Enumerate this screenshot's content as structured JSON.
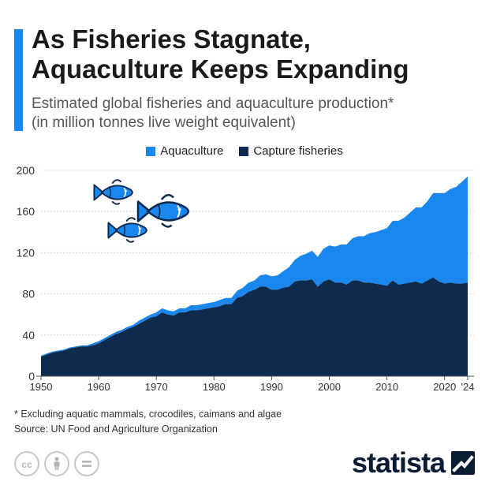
{
  "header": {
    "title_lines": [
      "As Fisheries Stagnate,",
      "Aquaculture Keeps Expanding"
    ],
    "subtitle_lines": [
      "Estimated global fisheries and aquaculture production*",
      "(in million tonnes live weight equivalent)"
    ]
  },
  "colors": {
    "aquaculture": "#1a87ef",
    "capture": "#0e2a4d",
    "accent": "#1a87ef",
    "brand": "#0a1c34"
  },
  "legend": {
    "items": [
      {
        "label": "Aquaculture",
        "color": "#1a87ef"
      },
      {
        "label": "Capture fisheries",
        "color": "#0e2a4d"
      }
    ]
  },
  "chart_data": {
    "type": "area",
    "stacked": true,
    "x": [
      1950,
      1951,
      1952,
      1953,
      1954,
      1955,
      1956,
      1957,
      1958,
      1959,
      1960,
      1961,
      1962,
      1963,
      1964,
      1965,
      1966,
      1967,
      1968,
      1969,
      1970,
      1971,
      1972,
      1973,
      1974,
      1975,
      1976,
      1977,
      1978,
      1979,
      1980,
      1981,
      1982,
      1983,
      1984,
      1985,
      1986,
      1987,
      1988,
      1989,
      1990,
      1991,
      1992,
      1993,
      1994,
      1995,
      1996,
      1997,
      1998,
      1999,
      2000,
      2001,
      2002,
      2003,
      2004,
      2005,
      2006,
      2007,
      2008,
      2009,
      2010,
      2011,
      2012,
      2013,
      2014,
      2015,
      2016,
      2017,
      2018,
      2019,
      2020,
      2021,
      2022,
      2023,
      2024
    ],
    "series": [
      {
        "name": "Capture fisheries",
        "values": [
          19,
          21,
          23,
          24,
          25,
          27,
          28,
          29,
          29,
          30,
          32,
          35,
          38,
          41,
          43,
          46,
          48,
          51,
          54,
          57,
          58,
          62,
          60,
          59,
          62,
          62,
          64,
          64,
          65,
          66,
          67,
          68,
          70,
          70,
          76,
          78,
          82,
          84,
          87,
          87,
          84,
          84,
          86,
          87,
          92,
          93,
          93,
          94,
          87,
          92,
          94,
          91,
          91,
          89,
          93,
          93,
          91,
          91,
          90,
          89,
          88,
          93,
          89,
          90,
          91,
          92,
          90,
          93,
          96,
          92,
          90,
          91,
          90,
          90,
          91
        ]
      },
      {
        "name": "Aquaculture",
        "values": [
          1,
          1,
          1,
          1,
          1,
          1,
          1,
          1,
          1,
          2,
          2,
          2,
          2,
          2,
          2,
          2,
          2,
          3,
          3,
          3,
          4,
          4,
          4,
          4,
          4,
          4,
          5,
          5,
          5,
          5,
          5,
          6,
          6,
          6,
          7,
          8,
          9,
          9,
          11,
          12,
          13,
          14,
          16,
          19,
          21,
          24,
          26,
          28,
          29,
          32,
          33,
          35,
          37,
          39,
          41,
          43,
          45,
          48,
          50,
          53,
          56,
          58,
          62,
          64,
          68,
          72,
          74,
          77,
          82,
          86,
          88,
          91,
          94,
          99,
          103
        ]
      }
    ],
    "xticks": [
      1950,
      1960,
      1970,
      1980,
      1990,
      2000,
      2010,
      2020
    ],
    "xtick_labels": [
      "1950",
      "1960",
      "1970",
      "1980",
      "1990",
      "2000",
      "2010",
      "2020"
    ],
    "extra_xtick_label": "'24",
    "yticks": [
      "0",
      "40",
      "80",
      "120",
      "160",
      "200"
    ],
    "xlim": [
      1950,
      2024
    ],
    "ylim": [
      0,
      200
    ],
    "grid": "horizontal",
    "legend_position": "top-center"
  },
  "footer": {
    "notes": [
      "* Excluding aquatic mammals, crocodiles, caimans and algae",
      "Source: UN Food and Agriculture Organization"
    ],
    "license_icons": [
      "cc-icon",
      "person-icon",
      "equals-icon"
    ],
    "brand": "statista"
  }
}
